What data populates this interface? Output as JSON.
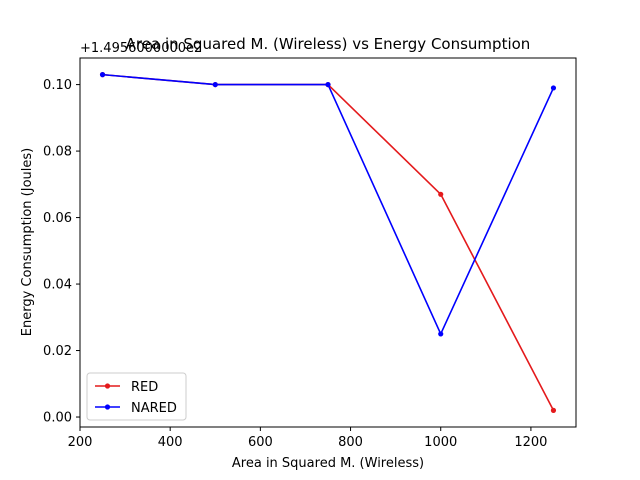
{
  "chart_data": {
    "type": "line",
    "title": "Area in Squared M. (Wireless)  vs Energy Consumption",
    "xlabel": "Area in Squared M. (Wireless)",
    "ylabel": "Energy Consumption (Joules)",
    "y_offset_text": "+1.4956000000e2",
    "xlim": [
      200,
      1300
    ],
    "ylim": [
      -0.003,
      0.108
    ],
    "xticks": [
      200,
      400,
      600,
      800,
      1000,
      1200
    ],
    "yticks": [
      0.0,
      0.02,
      0.04,
      0.06,
      0.08,
      0.1
    ],
    "ytick_labels": [
      "0.00",
      "0.02",
      "0.04",
      "0.06",
      "0.08",
      "0.10"
    ],
    "x": [
      250,
      500,
      750,
      1000,
      1250
    ],
    "series": [
      {
        "name": "RED",
        "color": "#e41a1c",
        "values": [
          0.103,
          0.1,
          0.1,
          0.067,
          0.002
        ]
      },
      {
        "name": "NARED",
        "color": "#0000ff",
        "values": [
          0.103,
          0.1,
          0.1,
          0.025,
          0.099
        ]
      }
    ],
    "legend": {
      "position": "lower-left",
      "entries": [
        "RED",
        "NARED"
      ]
    },
    "grid": false
  }
}
